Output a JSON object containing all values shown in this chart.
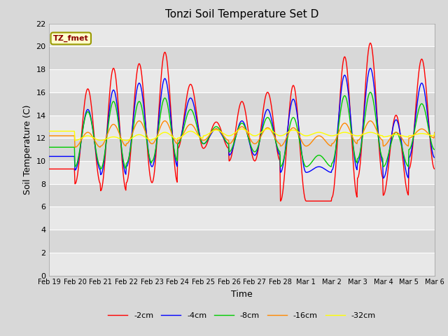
{
  "title": "Tonzi Soil Temperature Set D",
  "xlabel": "Time",
  "ylabel": "Soil Temperature (C)",
  "ylim": [
    0,
    22
  ],
  "annotation": "TZ_fmet",
  "legend": [
    "-2cm",
    "-4cm",
    "-8cm",
    "-16cm",
    "-32cm"
  ],
  "line_colors": [
    "#ff0000",
    "#0000ff",
    "#00cc00",
    "#ff8800",
    "#ffff00"
  ],
  "bg_color": "#d8d8d8",
  "plot_bg_light": "#e8e8e8",
  "plot_bg_dark": "#d8d8d8",
  "x_tick_labels": [
    "Feb 19",
    "Feb 20",
    "Feb 21",
    "Feb 22",
    "Feb 23",
    "Feb 24",
    "Feb 25",
    "Feb 26",
    "Feb 27",
    "Feb 28",
    "Mar 1",
    "Mar 2",
    "Mar 3",
    "Mar 4",
    "Mar 5",
    "Mar 6"
  ],
  "x_tick_positions": [
    0,
    1,
    2,
    3,
    4,
    5,
    6,
    7,
    8,
    9,
    10,
    11,
    12,
    13,
    14,
    15
  ],
  "yticks": [
    0,
    2,
    4,
    6,
    8,
    10,
    12,
    14,
    16,
    18,
    20,
    22
  ],
  "peaks_2cm": [
    9.3,
    16.3,
    18.1,
    18.5,
    19.5,
    16.7,
    13.4,
    15.2,
    16.0,
    16.6,
    6.5,
    19.1,
    20.3,
    14.0,
    18.9,
    9.3
  ],
  "troughs_2cm": [
    9.3,
    8.0,
    7.4,
    8.1,
    8.1,
    11.1,
    11.1,
    10.0,
    10.0,
    6.5,
    6.5,
    6.8,
    8.5,
    7.0,
    9.3,
    9.3
  ],
  "peaks_4cm": [
    10.4,
    14.5,
    16.2,
    16.8,
    17.2,
    15.5,
    12.8,
    13.5,
    14.5,
    15.4,
    9.5,
    17.5,
    18.1,
    13.6,
    16.8,
    10.3
  ],
  "troughs_4cm": [
    10.4,
    9.2,
    8.8,
    9.5,
    9.5,
    11.5,
    11.5,
    10.5,
    10.5,
    9.0,
    9.0,
    9.2,
    9.8,
    8.5,
    10.3,
    10.3
  ],
  "peaks_8cm": [
    11.2,
    14.3,
    15.2,
    15.2,
    15.5,
    14.5,
    13.0,
    13.3,
    13.8,
    13.8,
    10.5,
    15.7,
    16.0,
    12.5,
    15.0,
    11.0
  ],
  "troughs_8cm": [
    11.2,
    9.5,
    9.3,
    9.8,
    10.0,
    11.5,
    11.5,
    10.8,
    10.8,
    9.5,
    9.5,
    9.8,
    10.2,
    9.5,
    11.0,
    11.0
  ],
  "peaks_16cm": [
    12.2,
    12.5,
    13.2,
    13.5,
    13.5,
    13.2,
    12.8,
    13.0,
    12.9,
    12.9,
    12.2,
    13.3,
    13.5,
    12.5,
    12.8,
    12.5
  ],
  "troughs_16cm": [
    12.2,
    11.2,
    11.3,
    11.5,
    11.5,
    11.8,
    11.8,
    11.5,
    11.5,
    11.3,
    11.3,
    11.5,
    11.8,
    11.3,
    12.0,
    12.5
  ],
  "peaks_32cm": [
    12.6,
    12.2,
    12.1,
    12.3,
    12.5,
    12.6,
    12.7,
    12.8,
    12.8,
    12.7,
    12.5,
    12.5,
    12.5,
    12.3,
    12.4,
    12.4
  ],
  "troughs_32cm": [
    12.6,
    11.8,
    11.8,
    11.8,
    11.9,
    12.0,
    12.2,
    12.2,
    12.2,
    12.2,
    12.2,
    12.2,
    12.2,
    12.1,
    12.2,
    12.4
  ]
}
